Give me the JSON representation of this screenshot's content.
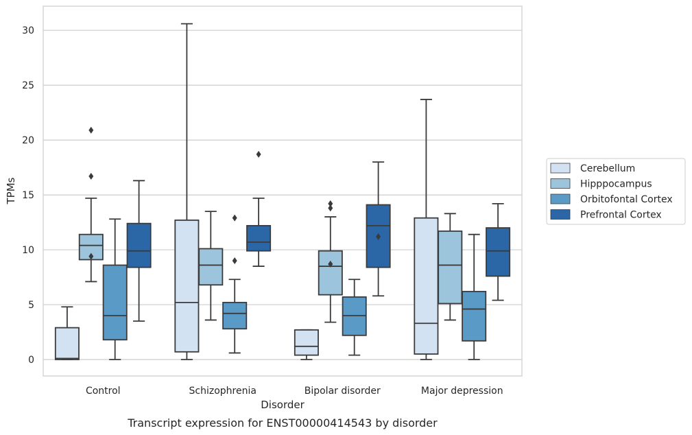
{
  "chart_data": {
    "type": "box",
    "xlabel": "Disorder",
    "ylabel": "TPMs",
    "caption": "Transcript expression for ENST00000414543 by disorder",
    "categories": [
      "Control",
      "Schizophrenia",
      "Bipolar disorder",
      "Major depression"
    ],
    "ylim": [
      -1.5,
      32.2
    ],
    "yticks": [
      0,
      5,
      10,
      15,
      20,
      25,
      30
    ],
    "grid": "horizontal",
    "legend_position": "right",
    "series": [
      {
        "name": "Cerebellum",
        "color": "#d3e2f3",
        "boxes": [
          {
            "whislo": 0,
            "q1": 0,
            "med": 0.1,
            "q3": 2.9,
            "whishi": 4.8,
            "fliers": []
          },
          {
            "whislo": 0,
            "q1": 0.7,
            "med": 5.2,
            "q3": 12.7,
            "whishi": 30.6,
            "fliers": []
          },
          {
            "whislo": 0,
            "q1": 0.4,
            "med": 1.2,
            "q3": 2.7,
            "whishi": 2.7,
            "fliers": []
          },
          {
            "whislo": 0,
            "q1": 0.5,
            "med": 3.3,
            "q3": 12.9,
            "whishi": 23.7,
            "fliers": []
          }
        ]
      },
      {
        "name": "Hipppocampus",
        "color": "#9cc4dd",
        "boxes": [
          {
            "whislo": 7.1,
            "q1": 9.1,
            "med": 10.4,
            "q3": 11.4,
            "whishi": 14.7,
            "fliers": [
              9.4,
              16.7,
              20.9
            ]
          },
          {
            "whislo": 3.6,
            "q1": 6.8,
            "med": 8.6,
            "q3": 10.1,
            "whishi": 13.5,
            "fliers": []
          },
          {
            "whislo": 3.4,
            "q1": 5.9,
            "med": 8.5,
            "q3": 9.9,
            "whishi": 13.0,
            "fliers": [
              8.7,
              13.8,
              14.2
            ]
          },
          {
            "whislo": 3.6,
            "q1": 5.1,
            "med": 8.6,
            "q3": 11.7,
            "whishi": 13.3,
            "fliers": []
          }
        ]
      },
      {
        "name": "Orbitofontal Cortex",
        "color": "#5a9ac6",
        "boxes": [
          {
            "whislo": 0,
            "q1": 1.8,
            "med": 4.0,
            "q3": 8.6,
            "whishi": 12.8,
            "fliers": []
          },
          {
            "whislo": 0.6,
            "q1": 2.8,
            "med": 4.2,
            "q3": 5.2,
            "whishi": 7.3,
            "fliers": [
              9.0,
              12.9
            ]
          },
          {
            "whislo": 0.4,
            "q1": 2.2,
            "med": 4.0,
            "q3": 5.7,
            "whishi": 7.3,
            "fliers": []
          },
          {
            "whislo": 0,
            "q1": 1.7,
            "med": 4.6,
            "q3": 6.2,
            "whishi": 11.4,
            "fliers": []
          }
        ]
      },
      {
        "name": "Prefrontal Cortex",
        "color": "#2b67a7",
        "boxes": [
          {
            "whislo": 3.5,
            "q1": 8.4,
            "med": 9.9,
            "q3": 12.4,
            "whishi": 16.3,
            "fliers": []
          },
          {
            "whislo": 8.5,
            "q1": 9.9,
            "med": 10.7,
            "q3": 12.2,
            "whishi": 14.7,
            "fliers": [
              18.7
            ]
          },
          {
            "whislo": 5.8,
            "q1": 8.4,
            "med": 12.2,
            "q3": 14.1,
            "whishi": 18.0,
            "fliers": [
              11.2
            ]
          },
          {
            "whislo": 5.4,
            "q1": 7.6,
            "med": 9.9,
            "q3": 12.0,
            "whishi": 14.2,
            "fliers": []
          }
        ]
      }
    ]
  }
}
